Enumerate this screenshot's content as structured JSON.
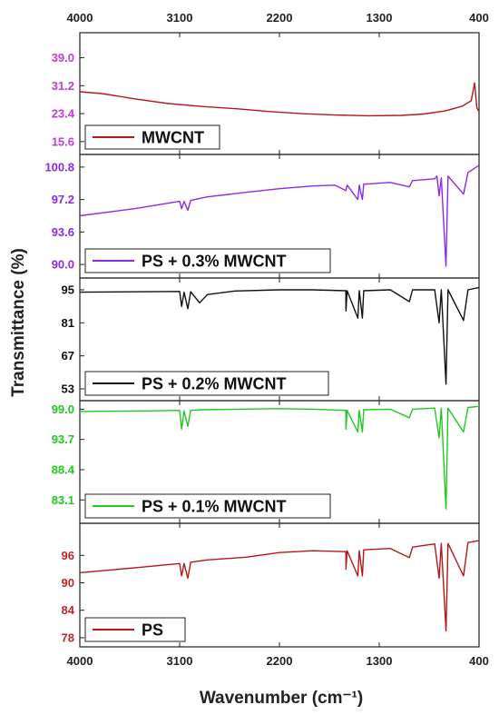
{
  "chart_data": {
    "type": "line",
    "title": "",
    "xlabel": "Wavenumber (cm⁻¹)",
    "ylabel": "Transmittance (%)",
    "x_range": [
      4000,
      400
    ],
    "x_ticks": [
      "4000",
      "3100",
      "2200",
      "1300",
      "400"
    ],
    "x_tick_values": [
      4000,
      3100,
      2200,
      1300,
      400
    ],
    "grid": false,
    "panels": [
      {
        "series_name": "MWCNT",
        "color": "#b5171a",
        "tick_color": "#c23bd6",
        "ylim": [
          12,
          46
        ],
        "y_ticks": [
          "39.0",
          "31.2",
          "23.4",
          "15.6"
        ],
        "y_tick_values": [
          39.0,
          31.2,
          23.4,
          15.6
        ],
        "legend_label": "MWCNT",
        "points": [
          [
            4000,
            29.5
          ],
          [
            3800,
            29.0
          ],
          [
            3500,
            27.5
          ],
          [
            3200,
            26.2
          ],
          [
            2900,
            25.4
          ],
          [
            2600,
            24.8
          ],
          [
            2300,
            24.0
          ],
          [
            2000,
            23.4
          ],
          [
            1700,
            23.0
          ],
          [
            1400,
            22.8
          ],
          [
            1100,
            22.9
          ],
          [
            900,
            23.3
          ],
          [
            700,
            24.2
          ],
          [
            550,
            25.5
          ],
          [
            470,
            27.0
          ],
          [
            440,
            32.0
          ],
          [
            420,
            25.0
          ],
          [
            400,
            24.0
          ]
        ]
      },
      {
        "series_name": "PS + 0.3% MWCNT",
        "color": "#8b2be2",
        "tick_color": "#8b2be2",
        "ylim": [
          88.5,
          102.2
        ],
        "y_ticks": [
          "100.8",
          "97.2",
          "93.6",
          "90.0"
        ],
        "y_tick_values": [
          100.8,
          97.2,
          93.6,
          90.0
        ],
        "legend_label": "PS + 0.3% MWCNT",
        "points": [
          [
            4000,
            95.4
          ],
          [
            3500,
            96.2
          ],
          [
            3100,
            97.0
          ],
          [
            3082,
            96.2
          ],
          [
            3060,
            97.0
          ],
          [
            3026,
            96.0
          ],
          [
            3000,
            97.1
          ],
          [
            2850,
            97.5
          ],
          [
            2500,
            98.0
          ],
          [
            2200,
            98.4
          ],
          [
            1900,
            98.7
          ],
          [
            1700,
            98.8
          ],
          [
            1601,
            98.2
          ],
          [
            1590,
            98.8
          ],
          [
            1493,
            97.2
          ],
          [
            1480,
            98.8
          ],
          [
            1452,
            97.2
          ],
          [
            1440,
            98.9
          ],
          [
            1200,
            99.1
          ],
          [
            1028,
            98.6
          ],
          [
            1000,
            99.3
          ],
          [
            800,
            99.5
          ],
          [
            780,
            99.8
          ],
          [
            760,
            97.6
          ],
          [
            740,
            99.6
          ],
          [
            698,
            89.8
          ],
          [
            680,
            99.8
          ],
          [
            540,
            97.8
          ],
          [
            500,
            100.2
          ],
          [
            450,
            100.6
          ],
          [
            400,
            101.0
          ]
        ]
      },
      {
        "series_name": "PS + 0.2% MWCNT",
        "color": "#111111",
        "tick_color": "#111111",
        "ylim": [
          48,
          100
        ],
        "y_ticks": [
          "95",
          "81",
          "67",
          "53"
        ],
        "y_tick_values": [
          95,
          81,
          67,
          53
        ],
        "legend_label": "PS + 0.2% MWCNT",
        "points": [
          [
            4000,
            94.0
          ],
          [
            3400,
            94.2
          ],
          [
            3100,
            94.3
          ],
          [
            3082,
            88.0
          ],
          [
            3060,
            94.0
          ],
          [
            3026,
            87.0
          ],
          [
            3000,
            94.2
          ],
          [
            2920,
            89.5
          ],
          [
            2850,
            93.0
          ],
          [
            2600,
            94.5
          ],
          [
            2200,
            95.0
          ],
          [
            1900,
            95.0
          ],
          [
            1601,
            94.6
          ],
          [
            1600,
            86.0
          ],
          [
            1590,
            94.6
          ],
          [
            1493,
            83.0
          ],
          [
            1480,
            94.6
          ],
          [
            1452,
            83.0
          ],
          [
            1440,
            94.6
          ],
          [
            1200,
            95.0
          ],
          [
            1028,
            90.0
          ],
          [
            1000,
            95.0
          ],
          [
            800,
            95.0
          ],
          [
            760,
            81.0
          ],
          [
            740,
            95.0
          ],
          [
            698,
            55.0
          ],
          [
            680,
            95.0
          ],
          [
            540,
            82.0
          ],
          [
            500,
            95.0
          ],
          [
            400,
            96.0
          ]
        ]
      },
      {
        "series_name": "PS + 0.1% MWCNT",
        "color": "#22c81f",
        "tick_color": "#22c81f",
        "ylim": [
          79,
          100.5
        ],
        "y_ticks": [
          "99.0",
          "93.7",
          "88.4",
          "83.1"
        ],
        "y_tick_values": [
          99.0,
          93.7,
          88.4,
          83.1
        ],
        "legend_label": "PS + 0.1% MWCNT",
        "points": [
          [
            4000,
            98.6
          ],
          [
            3400,
            98.7
          ],
          [
            3100,
            98.8
          ],
          [
            3082,
            95.5
          ],
          [
            3060,
            98.7
          ],
          [
            3026,
            96.0
          ],
          [
            3000,
            98.8
          ],
          [
            2900,
            98.9
          ],
          [
            2200,
            99.1
          ],
          [
            1900,
            99.0
          ],
          [
            1601,
            98.8
          ],
          [
            1600,
            95.5
          ],
          [
            1590,
            98.8
          ],
          [
            1493,
            95.0
          ],
          [
            1480,
            98.8
          ],
          [
            1452,
            95.0
          ],
          [
            1440,
            98.9
          ],
          [
            1200,
            99.0
          ],
          [
            1028,
            97.5
          ],
          [
            1000,
            99.0
          ],
          [
            800,
            99.2
          ],
          [
            760,
            94.0
          ],
          [
            740,
            99.2
          ],
          [
            698,
            81.5
          ],
          [
            680,
            99.2
          ],
          [
            540,
            95.0
          ],
          [
            500,
            99.3
          ],
          [
            400,
            99.5
          ]
        ]
      },
      {
        "series_name": "PS",
        "color": "#b5171a",
        "tick_color": "#c0272d",
        "ylim": [
          76,
          103
        ],
        "y_ticks": [
          "96",
          "90",
          "84",
          "78"
        ],
        "y_tick_values": [
          96,
          90,
          84,
          78
        ],
        "legend_label": "PS",
        "points": [
          [
            4000,
            92.2
          ],
          [
            3500,
            93.3
          ],
          [
            3100,
            94.2
          ],
          [
            3082,
            91.5
          ],
          [
            3060,
            94.2
          ],
          [
            3026,
            91.0
          ],
          [
            3000,
            94.5
          ],
          [
            2850,
            95.0
          ],
          [
            2500,
            95.6
          ],
          [
            2200,
            96.6
          ],
          [
            1900,
            97.0
          ],
          [
            1601,
            96.8
          ],
          [
            1600,
            93.0
          ],
          [
            1590,
            97.0
          ],
          [
            1493,
            91.5
          ],
          [
            1480,
            97.0
          ],
          [
            1452,
            91.5
          ],
          [
            1440,
            97.2
          ],
          [
            1200,
            97.5
          ],
          [
            1028,
            95.5
          ],
          [
            1000,
            97.8
          ],
          [
            800,
            98.5
          ],
          [
            760,
            91.0
          ],
          [
            740,
            98.6
          ],
          [
            698,
            79.5
          ],
          [
            680,
            98.6
          ],
          [
            540,
            91.5
          ],
          [
            500,
            98.8
          ],
          [
            400,
            99.2
          ]
        ]
      }
    ]
  }
}
